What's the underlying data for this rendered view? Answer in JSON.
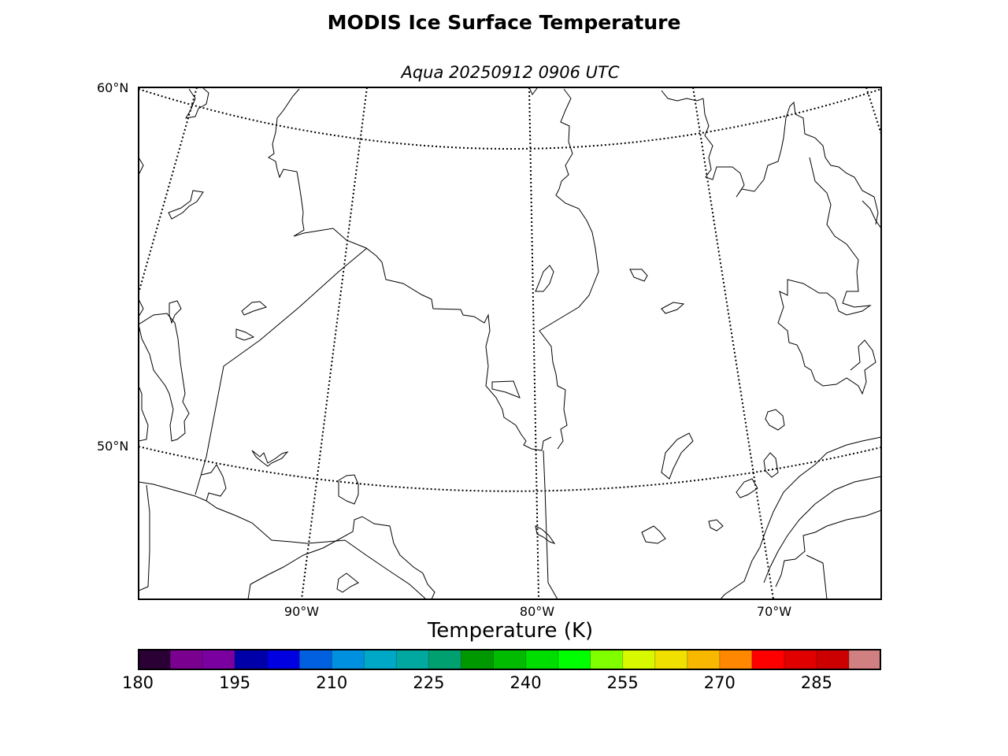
{
  "title": "MODIS Ice Surface Temperature",
  "subtitle": "Aqua 20250912 0906 UTC",
  "map": {
    "projection": "conic",
    "parallels": [
      "60°N",
      "50°N"
    ],
    "meridians": [
      "90°W",
      "80°W",
      "70°W"
    ],
    "graticule_style": "dotted",
    "land_fill": "#ffffff",
    "coastline_color": "#000000"
  },
  "colorbar": {
    "label": "Temperature (K)",
    "min": 180,
    "max": 295,
    "step": 5,
    "tick_labels": [
      "180",
      "195",
      "210",
      "225",
      "240",
      "255",
      "270",
      "285"
    ],
    "colors": [
      "#2a0035",
      "#7a0090",
      "#7a00a0",
      "#0000a8",
      "#0000e0",
      "#0060e0",
      "#0090e0",
      "#00a8c8",
      "#00a8a0",
      "#00a070",
      "#009800",
      "#00bb00",
      "#00dd00",
      "#00ff00",
      "#80ff00",
      "#d8f800",
      "#f0e000",
      "#f8b800",
      "#ff8800",
      "#ff0000",
      "#e00000",
      "#cc0000",
      "#d08080"
    ]
  }
}
